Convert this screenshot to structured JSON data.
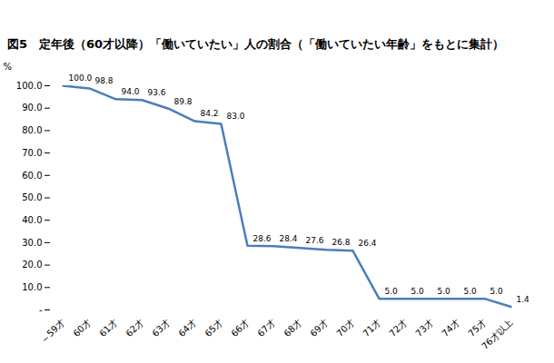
{
  "chart_data": {
    "type": "line",
    "title": "図5　定年後（60才以降）「働いていたい」人の割合（「働いていたい年齢」をもとに集計）",
    "y_label": "%",
    "categories": [
      "～59才",
      "60才",
      "61才",
      "62才",
      "63才",
      "64才",
      "65才",
      "66才",
      "67才",
      "68才",
      "69才",
      "70才",
      "71才",
      "72才",
      "73才",
      "74才",
      "75才",
      "76才以上"
    ],
    "values": [
      100.0,
      98.8,
      94.0,
      93.6,
      89.8,
      84.2,
      83.0,
      28.6,
      28.4,
      27.6,
      26.8,
      26.4,
      5.0,
      5.0,
      5.0,
      5.0,
      5.0,
      1.4
    ],
    "value_labels": [
      "100.0",
      "98.8",
      "94.0",
      "93.6",
      "89.8",
      "84.2",
      "83.0",
      "28.6",
      "28.4",
      "27.6",
      "26.8",
      "26.4",
      "5.0",
      "5.0",
      "5.0",
      "5.0",
      "5.0",
      "1.4"
    ],
    "data_labels": true,
    "color": "#4a7ebb",
    "grid": false,
    "ylim": [
      0,
      100
    ],
    "yticks": [
      {
        "value": 0,
        "label": "-"
      },
      {
        "value": 10,
        "label": "10.0"
      },
      {
        "value": 20,
        "label": "20.0"
      },
      {
        "value": 30,
        "label": "30.0"
      },
      {
        "value": 40,
        "label": "40.0"
      },
      {
        "value": 50,
        "label": "50.0"
      },
      {
        "value": 60,
        "label": "60.0"
      },
      {
        "value": 70,
        "label": "70.0"
      },
      {
        "value": 80,
        "label": "80.0"
      },
      {
        "value": 90,
        "label": "90.0"
      },
      {
        "value": 100,
        "label": "100.0"
      }
    ]
  }
}
